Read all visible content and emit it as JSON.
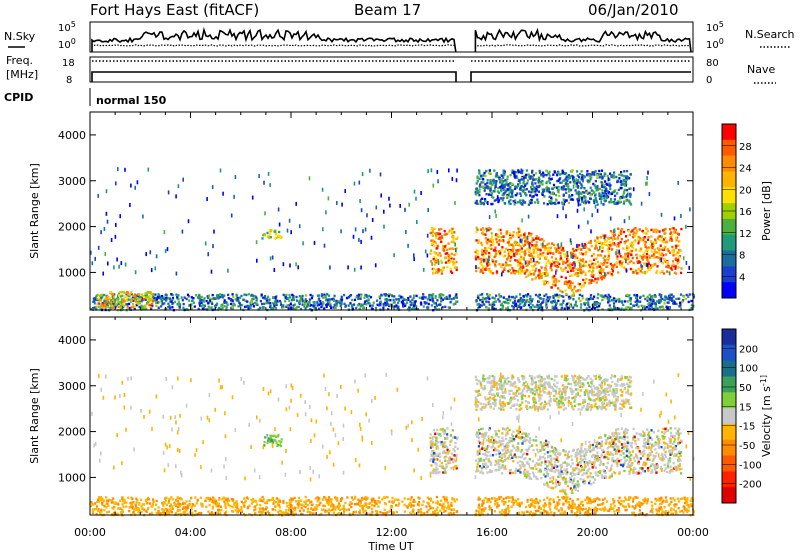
{
  "header": {
    "station": "Fort Hays East (fitACF)",
    "beam": "Beam 17",
    "date": "06/Jan/2010"
  },
  "nsky_panel": {
    "left_label": "N.Sky",
    "right_label": "N.Search",
    "left_ticks": [
      "10^5",
      "10^0"
    ],
    "right_ticks": [
      "10^5",
      "10^0"
    ]
  },
  "freq_panel": {
    "left_label_1": "Freq.",
    "left_label_2": "[MHz]",
    "right_label": "Nave",
    "left_ticks": [
      "18",
      "8"
    ],
    "right_ticks": [
      "80",
      "0"
    ]
  },
  "cpid_panel": {
    "label": "CPID",
    "mode": "normal 150"
  },
  "data_gap_hours": [
    14.6,
    15.3
  ],
  "x_axis": {
    "label": "Time UT",
    "ticks": [
      "00:00",
      "04:00",
      "08:00",
      "12:00",
      "16:00",
      "20:00",
      "00:00"
    ],
    "range_hours": [
      0,
      24
    ]
  },
  "chart_data": [
    {
      "type": "heatmap",
      "title": "",
      "ylabel": "Slant Range [km]",
      "ylim": [
        180,
        4500
      ],
      "yticks": [
        "1000",
        "2000",
        "3000",
        "4000"
      ],
      "colorbar_label": "Power [dB]",
      "colorbar_ticks": [
        "28",
        "24",
        "20",
        "16",
        "12",
        "8",
        "4"
      ],
      "colorbar_colors": [
        "#ff0000",
        "#ff5a00",
        "#ff8c00",
        "#ffb400",
        "#ffe000",
        "#a0d000",
        "#4cb040",
        "#1f9a7a",
        "#1a6e9e",
        "#1a3ed0",
        "#0000ff"
      ],
      "features": [
        {
          "desc": "near-range scatter",
          "x": [
            0,
            24
          ],
          "y": [
            200,
            550
          ],
          "value": 8
        },
        {
          "desc": "early-morning enhancement",
          "x": [
            0.2,
            2.5
          ],
          "y": [
            250,
            600
          ],
          "value": 20
        },
        {
          "desc": "patch",
          "x": [
            6.8,
            7.6
          ],
          "y": [
            1750,
            1950
          ],
          "value": 16
        },
        {
          "desc": "main echo band",
          "x": [
            13.5,
            23.5
          ],
          "y": [
            1000,
            2000
          ],
          "value": 24
        },
        {
          "desc": "far-range scatter",
          "x": [
            15.0,
            21.5
          ],
          "y": [
            2500,
            3250
          ],
          "value": 8
        },
        {
          "desc": "sparse isolated returns",
          "x": [
            0,
            24
          ],
          "y": [
            1000,
            3300
          ],
          "value": 6
        }
      ]
    },
    {
      "type": "heatmap",
      "title": "",
      "ylabel": "Slant Range [km]",
      "ylim": [
        180,
        4500
      ],
      "yticks": [
        "1000",
        "2000",
        "3000",
        "4000"
      ],
      "colorbar_label": "Velocity [m s^-1]",
      "colorbar_ticks": [
        "200",
        "100",
        "50",
        "15",
        "-15",
        "-50",
        "-100",
        "-200"
      ],
      "colorbar_colors": [
        "#1a2e9a",
        "#1c50c8",
        "#1a6e8c",
        "#3aa05a",
        "#7fcf3a",
        "#c8c8c8",
        "#ffb400",
        "#ff8c00",
        "#ff5a00",
        "#ff2000",
        "#e00000"
      ],
      "features": [
        {
          "desc": "near-range scatter",
          "x": [
            0,
            24
          ],
          "y": [
            200,
            600
          ],
          "value": -50
        },
        {
          "desc": "patch",
          "x": [
            6.8,
            7.6
          ],
          "y": [
            1700,
            1950
          ],
          "value": 50
        },
        {
          "desc": "main echo band",
          "x": [
            13.5,
            23.5
          ],
          "y": [
            1100,
            2100
          ],
          "value": 0
        },
        {
          "desc": "far-range scatter",
          "x": [
            15.0,
            21.5
          ],
          "y": [
            2500,
            3250
          ],
          "value": 0
        },
        {
          "desc": "sparse isolated returns",
          "x": [
            0,
            24
          ],
          "y": [
            1000,
            3300
          ],
          "value": -30
        }
      ]
    }
  ]
}
